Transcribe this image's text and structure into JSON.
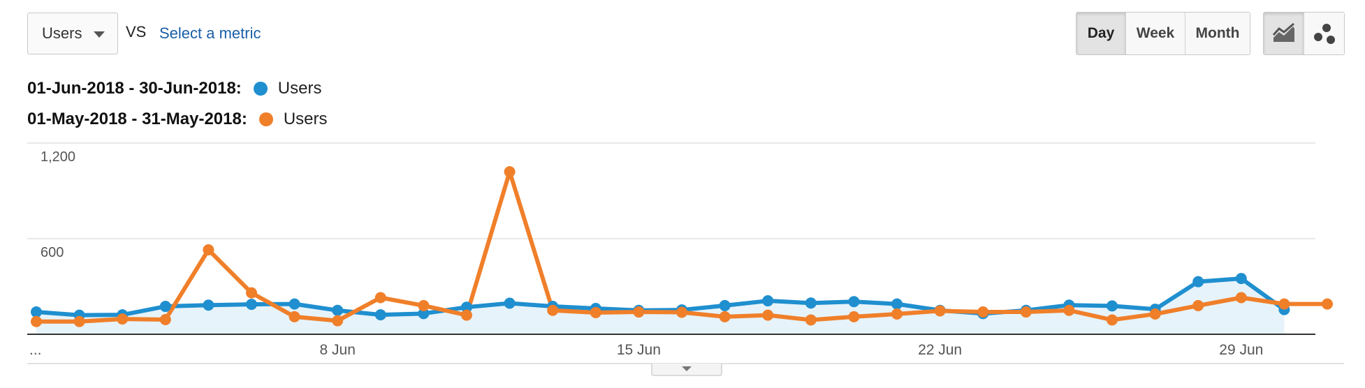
{
  "controls": {
    "metric_select": "Users",
    "vs": "VS",
    "select_metric": "Select a metric",
    "period_buttons": [
      "Day",
      "Week",
      "Month"
    ],
    "active_period": "Day",
    "view_icons": [
      "motion-chart-line-icon",
      "motion-chart-bubble-icon"
    ]
  },
  "legend": [
    {
      "range": "01-Jun-2018 - 30-Jun-2018:",
      "series": "Users",
      "color": "#1f8fcf"
    },
    {
      "range": "01-May-2018 - 31-May-2018:",
      "series": "Users",
      "color": "#f07f2a"
    }
  ],
  "chart_data": {
    "type": "line",
    "x_tick_labels": [
      "...",
      "8 Jun",
      "15 Jun",
      "22 Jun",
      "29 Jun"
    ],
    "y_tick_labels": [
      "1,200",
      "600"
    ],
    "ylim": [
      0,
      1200
    ],
    "grid": true,
    "series": [
      {
        "name": "Users",
        "period": "01-Jun-2018 - 30-Jun-2018",
        "color": "#1f8fcf",
        "values": [
          140,
          120,
          122,
          175,
          183,
          188,
          190,
          150,
          122,
          130,
          170,
          195,
          175,
          162,
          150,
          153,
          180,
          210,
          196,
          205,
          190,
          150,
          130,
          150,
          183,
          178,
          157,
          330,
          350,
          155
        ]
      },
      {
        "name": "Users",
        "period": "01-May-2018 - 31-May-2018",
        "color": "#f07f2a",
        "values": [
          80,
          80,
          96,
          92,
          530,
          260,
          110,
          85,
          230,
          180,
          120,
          1020,
          150,
          136,
          140,
          138,
          110,
          120,
          90,
          110,
          127,
          147,
          140,
          140,
          150,
          90,
          127,
          180,
          230,
          190,
          190
        ]
      }
    ]
  }
}
